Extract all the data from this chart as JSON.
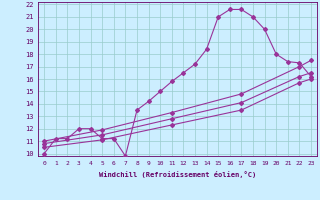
{
  "xlabel": "Windchill (Refroidissement éolien,°C)",
  "bg_color": "#cceeff",
  "line_color": "#993399",
  "grid_color": "#99cccc",
  "axis_color": "#660066",
  "tick_color": "#660066",
  "xlim": [
    -0.5,
    23.5
  ],
  "ylim": [
    9.8,
    22.2
  ],
  "xticks": [
    0,
    1,
    2,
    3,
    4,
    5,
    6,
    7,
    8,
    9,
    10,
    11,
    12,
    13,
    14,
    15,
    16,
    17,
    18,
    19,
    20,
    21,
    22,
    23
  ],
  "yticks": [
    10,
    11,
    12,
    13,
    14,
    15,
    16,
    17,
    18,
    19,
    20,
    21,
    22
  ],
  "curve_peaked_x": [
    0,
    1,
    2,
    3,
    4,
    5,
    6,
    7,
    8,
    9,
    10,
    11,
    12,
    13,
    14,
    15,
    16,
    17,
    18,
    19,
    20,
    21,
    22,
    23
  ],
  "curve_peaked_y": [
    10,
    11.2,
    11.2,
    12.0,
    12.0,
    11.2,
    11.2,
    9.8,
    13.5,
    14.2,
    15.0,
    15.8,
    16.5,
    17.2,
    18.4,
    21.0,
    21.6,
    21.6,
    21.0,
    20.0,
    18.0,
    17.4,
    17.3,
    16.2
  ],
  "line_straight1_x": [
    0,
    5,
    11,
    17,
    22,
    23
  ],
  "line_straight1_y": [
    10.5,
    11.1,
    12.3,
    13.5,
    15.7,
    16.0
  ],
  "line_straight2_x": [
    0,
    5,
    11,
    17,
    22,
    23
  ],
  "line_straight2_y": [
    10.8,
    11.5,
    12.8,
    14.1,
    16.2,
    16.5
  ],
  "line_straight3_x": [
    0,
    5,
    11,
    17,
    22,
    23
  ],
  "line_straight3_y": [
    11.0,
    11.9,
    13.3,
    14.8,
    17.0,
    17.5
  ]
}
